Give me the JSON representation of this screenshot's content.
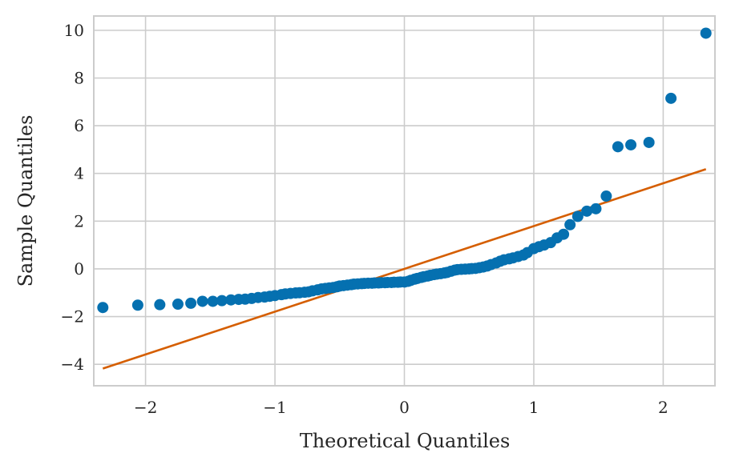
{
  "chart_data": {
    "type": "scatter",
    "title": "",
    "xlabel": "Theoretical Quantiles",
    "ylabel": "Sample Quantiles",
    "xlim": [
      -2.4,
      2.4
    ],
    "ylim": [
      -4.9,
      10.6
    ],
    "xticks": [
      -2,
      -1,
      0,
      1,
      2
    ],
    "xtick_labels": [
      "−2",
      "−1",
      "0",
      "1",
      "2"
    ],
    "yticks": [
      -4,
      -2,
      0,
      2,
      4,
      6,
      8,
      10
    ],
    "ytick_labels": [
      "−4",
      "−2",
      "0",
      "2",
      "4",
      "6",
      "8",
      "10"
    ],
    "grid": true,
    "legend": "none",
    "colors": {
      "points": "#0570b0",
      "line": "#d55e00",
      "grid": "#cccccc",
      "spine": "#cccccc"
    },
    "reference_line": {
      "x": [
        -2.33,
        2.33
      ],
      "y": [
        -4.18,
        4.18
      ]
    },
    "points": {
      "x": [
        -2.33,
        -2.06,
        -1.89,
        -1.75,
        -1.65,
        -1.56,
        -1.48,
        -1.41,
        -1.34,
        -1.28,
        -1.23,
        -1.18,
        -1.13,
        -1.08,
        -1.04,
        -1.0,
        -0.95,
        -0.92,
        -0.88,
        -0.84,
        -0.81,
        -0.77,
        -0.74,
        -0.71,
        -0.67,
        -0.64,
        -0.61,
        -0.58,
        -0.55,
        -0.52,
        -0.5,
        -0.47,
        -0.44,
        -0.41,
        -0.39,
        -0.36,
        -0.33,
        -0.31,
        -0.28,
        -0.25,
        -0.23,
        -0.2,
        -0.18,
        -0.15,
        -0.13,
        -0.1,
        -0.08,
        -0.05,
        -0.03,
        0.0,
        0.03,
        0.05,
        0.08,
        0.1,
        0.13,
        0.15,
        0.18,
        0.2,
        0.23,
        0.25,
        0.28,
        0.31,
        0.33,
        0.36,
        0.39,
        0.41,
        0.44,
        0.47,
        0.5,
        0.52,
        0.55,
        0.58,
        0.61,
        0.64,
        0.67,
        0.71,
        0.74,
        0.77,
        0.81,
        0.84,
        0.88,
        0.92,
        0.95,
        1.0,
        1.04,
        1.08,
        1.13,
        1.18,
        1.23,
        1.28,
        1.34,
        1.41,
        1.48,
        1.56,
        1.65,
        1.75,
        1.89,
        2.06,
        2.33
      ],
      "y": [
        -1.62,
        -1.52,
        -1.5,
        -1.48,
        -1.44,
        -1.36,
        -1.36,
        -1.33,
        -1.3,
        -1.28,
        -1.27,
        -1.24,
        -1.2,
        -1.18,
        -1.15,
        -1.12,
        -1.08,
        -1.05,
        -1.03,
        -1.01,
        -1.0,
        -0.98,
        -0.96,
        -0.92,
        -0.88,
        -0.84,
        -0.82,
        -0.8,
        -0.78,
        -0.75,
        -0.72,
        -0.7,
        -0.68,
        -0.66,
        -0.64,
        -0.63,
        -0.62,
        -0.61,
        -0.6,
        -0.6,
        -0.59,
        -0.59,
        -0.58,
        -0.58,
        -0.57,
        -0.57,
        -0.56,
        -0.56,
        -0.55,
        -0.55,
        -0.52,
        -0.48,
        -0.43,
        -0.4,
        -0.36,
        -0.33,
        -0.3,
        -0.27,
        -0.24,
        -0.22,
        -0.2,
        -0.17,
        -0.15,
        -0.1,
        -0.05,
        -0.03,
        -0.02,
        -0.01,
        0.0,
        0.01,
        0.02,
        0.05,
        0.08,
        0.12,
        0.18,
        0.25,
        0.32,
        0.38,
        0.42,
        0.46,
        0.52,
        0.58,
        0.68,
        0.85,
        0.93,
        1.0,
        1.1,
        1.3,
        1.45,
        1.85,
        2.2,
        2.42,
        2.52,
        3.05,
        5.12,
        5.2,
        5.3,
        7.15,
        9.88
      ]
    }
  }
}
